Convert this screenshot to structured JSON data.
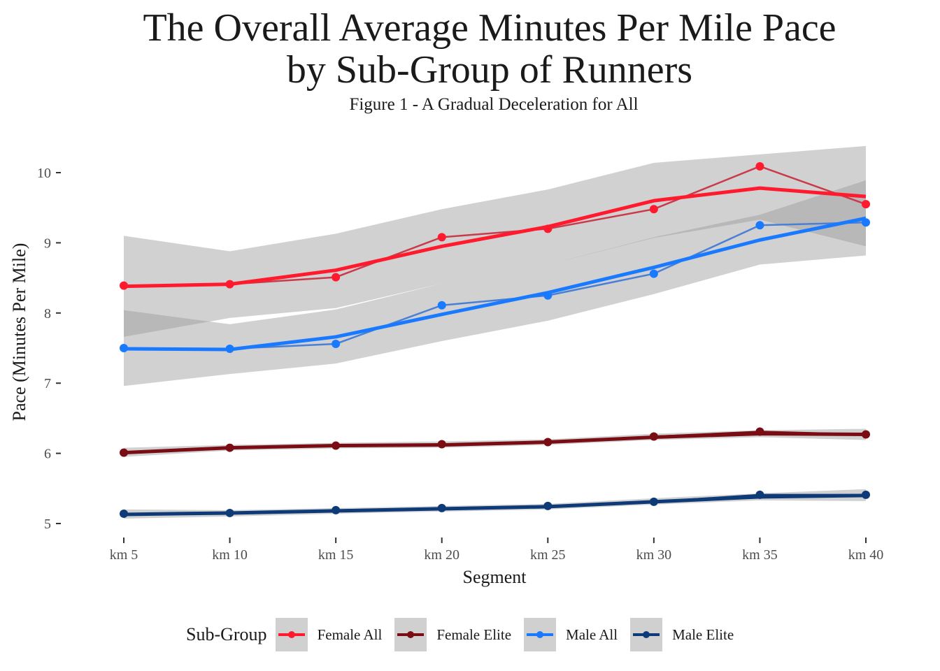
{
  "chart_data": {
    "type": "line",
    "title": [
      "The Overall Average Minutes Per Mile Pace",
      "by Sub-Group of Runners"
    ],
    "subtitle": "Figure 1 - A Gradual Deceleration for All",
    "xlabel": "Segment",
    "ylabel": "Pace (Minutes Per Mile)",
    "categories": [
      "km 5",
      "km 10",
      "km 15",
      "km 20",
      "km 25",
      "km 30",
      "km 35",
      "km 40"
    ],
    "ylim": [
      4.85,
      10.5
    ],
    "yticks": [
      5,
      6,
      7,
      8,
      9,
      10
    ],
    "grid": false,
    "legend": {
      "title": "Sub-Group",
      "position": "bottom"
    },
    "series": [
      {
        "name": "Female All",
        "color": "#ff1a2e",
        "raw_color": "#c93a4a",
        "values": [
          8.39,
          8.41,
          8.51,
          9.08,
          9.2,
          9.48,
          10.09,
          9.55
        ],
        "smooth": [
          8.38,
          8.41,
          8.61,
          8.95,
          9.23,
          9.6,
          9.78,
          9.66
        ],
        "band_lo": [
          7.66,
          7.93,
          8.07,
          8.42,
          8.69,
          9.07,
          9.33,
          8.95
        ],
        "band_hi": [
          9.1,
          8.88,
          9.13,
          9.48,
          9.76,
          10.14,
          10.26,
          10.38
        ]
      },
      {
        "name": "Female Elite",
        "color": "#7a0d14",
        "raw_color": "#7a0d14",
        "values": [
          6.01,
          6.08,
          6.11,
          6.13,
          6.16,
          6.24,
          6.31,
          6.27
        ],
        "smooth": [
          6.01,
          6.08,
          6.11,
          6.12,
          6.16,
          6.23,
          6.28,
          6.27
        ],
        "band_lo": [
          5.95,
          6.04,
          6.07,
          6.08,
          6.12,
          6.19,
          6.23,
          6.19
        ],
        "band_hi": [
          6.08,
          6.12,
          6.15,
          6.17,
          6.2,
          6.28,
          6.33,
          6.35
        ]
      },
      {
        "name": "Male All",
        "color": "#1a7aff",
        "raw_color": "#4a7fd6",
        "values": [
          7.5,
          7.49,
          7.56,
          8.11,
          8.25,
          8.56,
          9.25,
          9.29
        ],
        "smooth": [
          7.49,
          7.48,
          7.66,
          7.98,
          8.29,
          8.65,
          9.04,
          9.35
        ],
        "band_lo": [
          6.96,
          7.13,
          7.28,
          7.6,
          7.89,
          8.27,
          8.69,
          8.82
        ],
        "band_hi": [
          8.04,
          7.84,
          8.05,
          8.42,
          8.69,
          9.08,
          9.4,
          9.89
        ]
      },
      {
        "name": "Male Elite",
        "color": "#0f3a78",
        "raw_color": "#0f3a78",
        "values": [
          5.14,
          5.15,
          5.19,
          5.22,
          5.25,
          5.31,
          5.41,
          5.41
        ],
        "smooth": [
          5.13,
          5.15,
          5.18,
          5.21,
          5.24,
          5.31,
          5.38,
          5.4
        ],
        "band_lo": [
          5.07,
          5.1,
          5.14,
          5.17,
          5.2,
          5.27,
          5.33,
          5.32
        ],
        "band_hi": [
          5.2,
          5.19,
          5.22,
          5.25,
          5.28,
          5.36,
          5.43,
          5.49
        ]
      }
    ]
  }
}
